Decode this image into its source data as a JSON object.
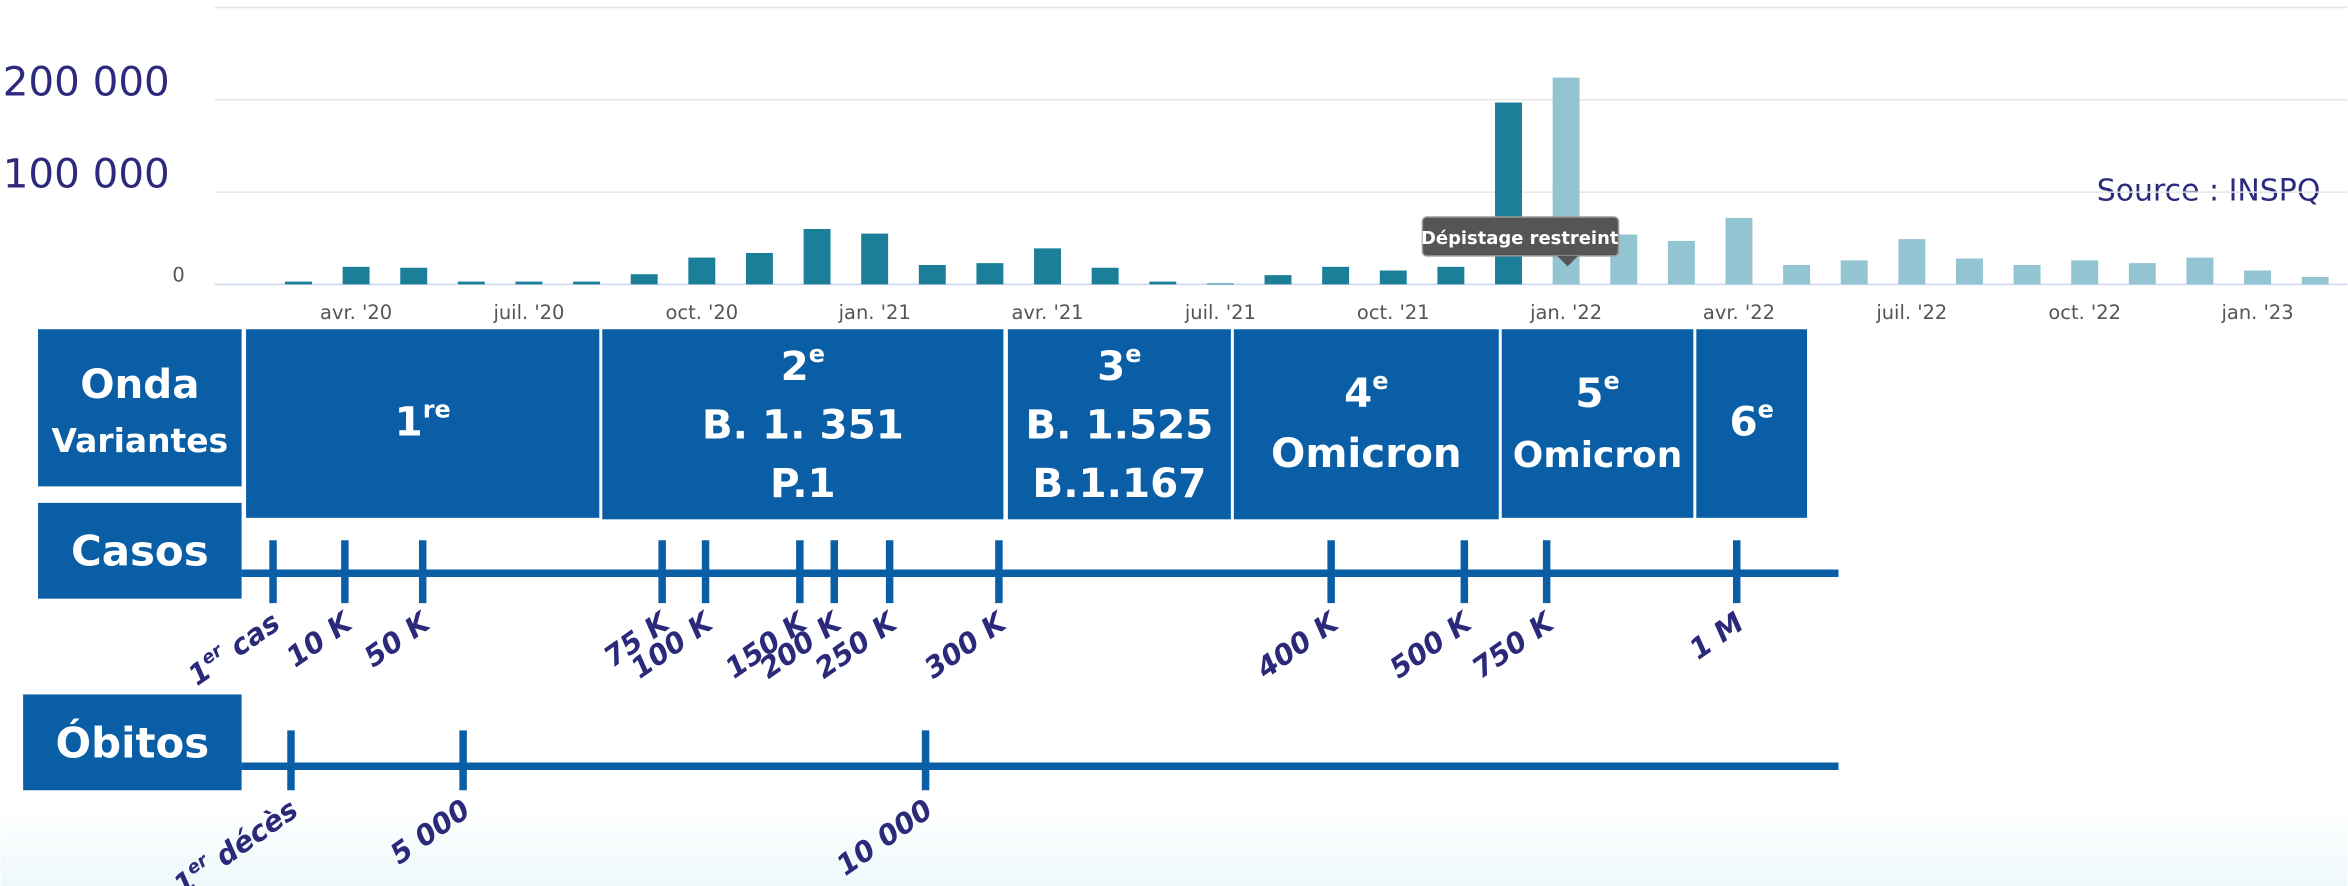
{
  "chart_data": {
    "type": "bar",
    "categories": [
      null,
      "avr. '20",
      null,
      null,
      "juil. '20",
      null,
      null,
      "oct. '20",
      null,
      null,
      "jan. '21",
      null,
      null,
      "avr. '21",
      null,
      null,
      "juil. '21",
      null,
      null,
      "oct. '21",
      null,
      null,
      "jan. '22",
      null,
      null,
      "avr. '22",
      null,
      null,
      "juil. '22",
      null,
      null,
      "oct. '22",
      null,
      null,
      "jan. '23",
      null
    ],
    "values": [
      3000,
      19000,
      18000,
      3000,
      3000,
      3000,
      11000,
      29000,
      34000,
      60000,
      55000,
      21000,
      23000,
      39000,
      18000,
      3000,
      1000,
      10000,
      19000,
      15000,
      19000,
      197000,
      224000,
      54000,
      47000,
      72000,
      21000,
      26000,
      49000,
      28000,
      21000,
      26000,
      23000,
      29000,
      15000,
      8000
    ],
    "colors": [
      "#1b7f9a",
      "#1b7f9a",
      "#1b7f9a",
      "#1b7f9a",
      "#1b7f9a",
      "#1b7f9a",
      "#1b7f9a",
      "#1b7f9a",
      "#1b7f9a",
      "#1b7f9a",
      "#1b7f9a",
      "#1b7f9a",
      "#1b7f9a",
      "#1b7f9a",
      "#1b7f9a",
      "#1b7f9a",
      "#1b7f9a",
      "#1b7f9a",
      "#1b7f9a",
      "#1b7f9a",
      "#1b7f9a",
      "#1b7f9a",
      "#93c4d1",
      "#93c4d1",
      "#93c4d1",
      "#93c4d1",
      "#93c4d1",
      "#93c4d1",
      "#93c4d1",
      "#93c4d1",
      "#93c4d1",
      "#93c4d1",
      "#93c4d1",
      "#93c4d1",
      "#93c4d1",
      "#93c4d1"
    ],
    "ylim": [
      0,
      300000
    ],
    "yticks": [
      0,
      {
        "value": 100000,
        "label": "100 000"
      },
      {
        "value": 200000,
        "label": "200 000"
      }
    ],
    "grid": true,
    "annotations": {
      "source": "Source : INSPQ",
      "tooltip": "Dépistage restreint"
    }
  },
  "waves": {
    "header": [
      "Onda",
      "Variantes"
    ],
    "items": [
      {
        "number": "1",
        "sup": "re",
        "lines": []
      },
      {
        "number": "2",
        "sup": "e",
        "lines": [
          "B. 1. 351",
          "P.1"
        ]
      },
      {
        "number": "3",
        "sup": "e",
        "lines": [
          "B. 1.525",
          "B.1.167"
        ]
      },
      {
        "number": "4",
        "sup": "e",
        "lines": [
          "Omicron"
        ]
      },
      {
        "number": "5",
        "sup": "e",
        "lines": [
          "Omicron"
        ]
      },
      {
        "number": "6",
        "sup": "e",
        "lines": []
      }
    ]
  },
  "cases": {
    "label": "Casos",
    "milestones": [
      {
        "text": "1",
        "sup": "er",
        "rest": " cas"
      },
      {
        "text": "10 K"
      },
      {
        "text": "50 K"
      },
      {
        "text": "75 K"
      },
      {
        "text": "100 K"
      },
      {
        "text": "150 K"
      },
      {
        "text": "200 K"
      },
      {
        "text": "250 K"
      },
      {
        "text": "300 K"
      },
      {
        "text": "400 K"
      },
      {
        "text": "500 K"
      },
      {
        "text": "750 K"
      },
      {
        "text": "1 M"
      }
    ]
  },
  "deaths": {
    "label": "Óbitos",
    "milestones": [
      {
        "text": "1",
        "sup": "er",
        "rest": " décès"
      },
      {
        "text": "5 000"
      },
      {
        "text": "10 000"
      }
    ]
  }
}
